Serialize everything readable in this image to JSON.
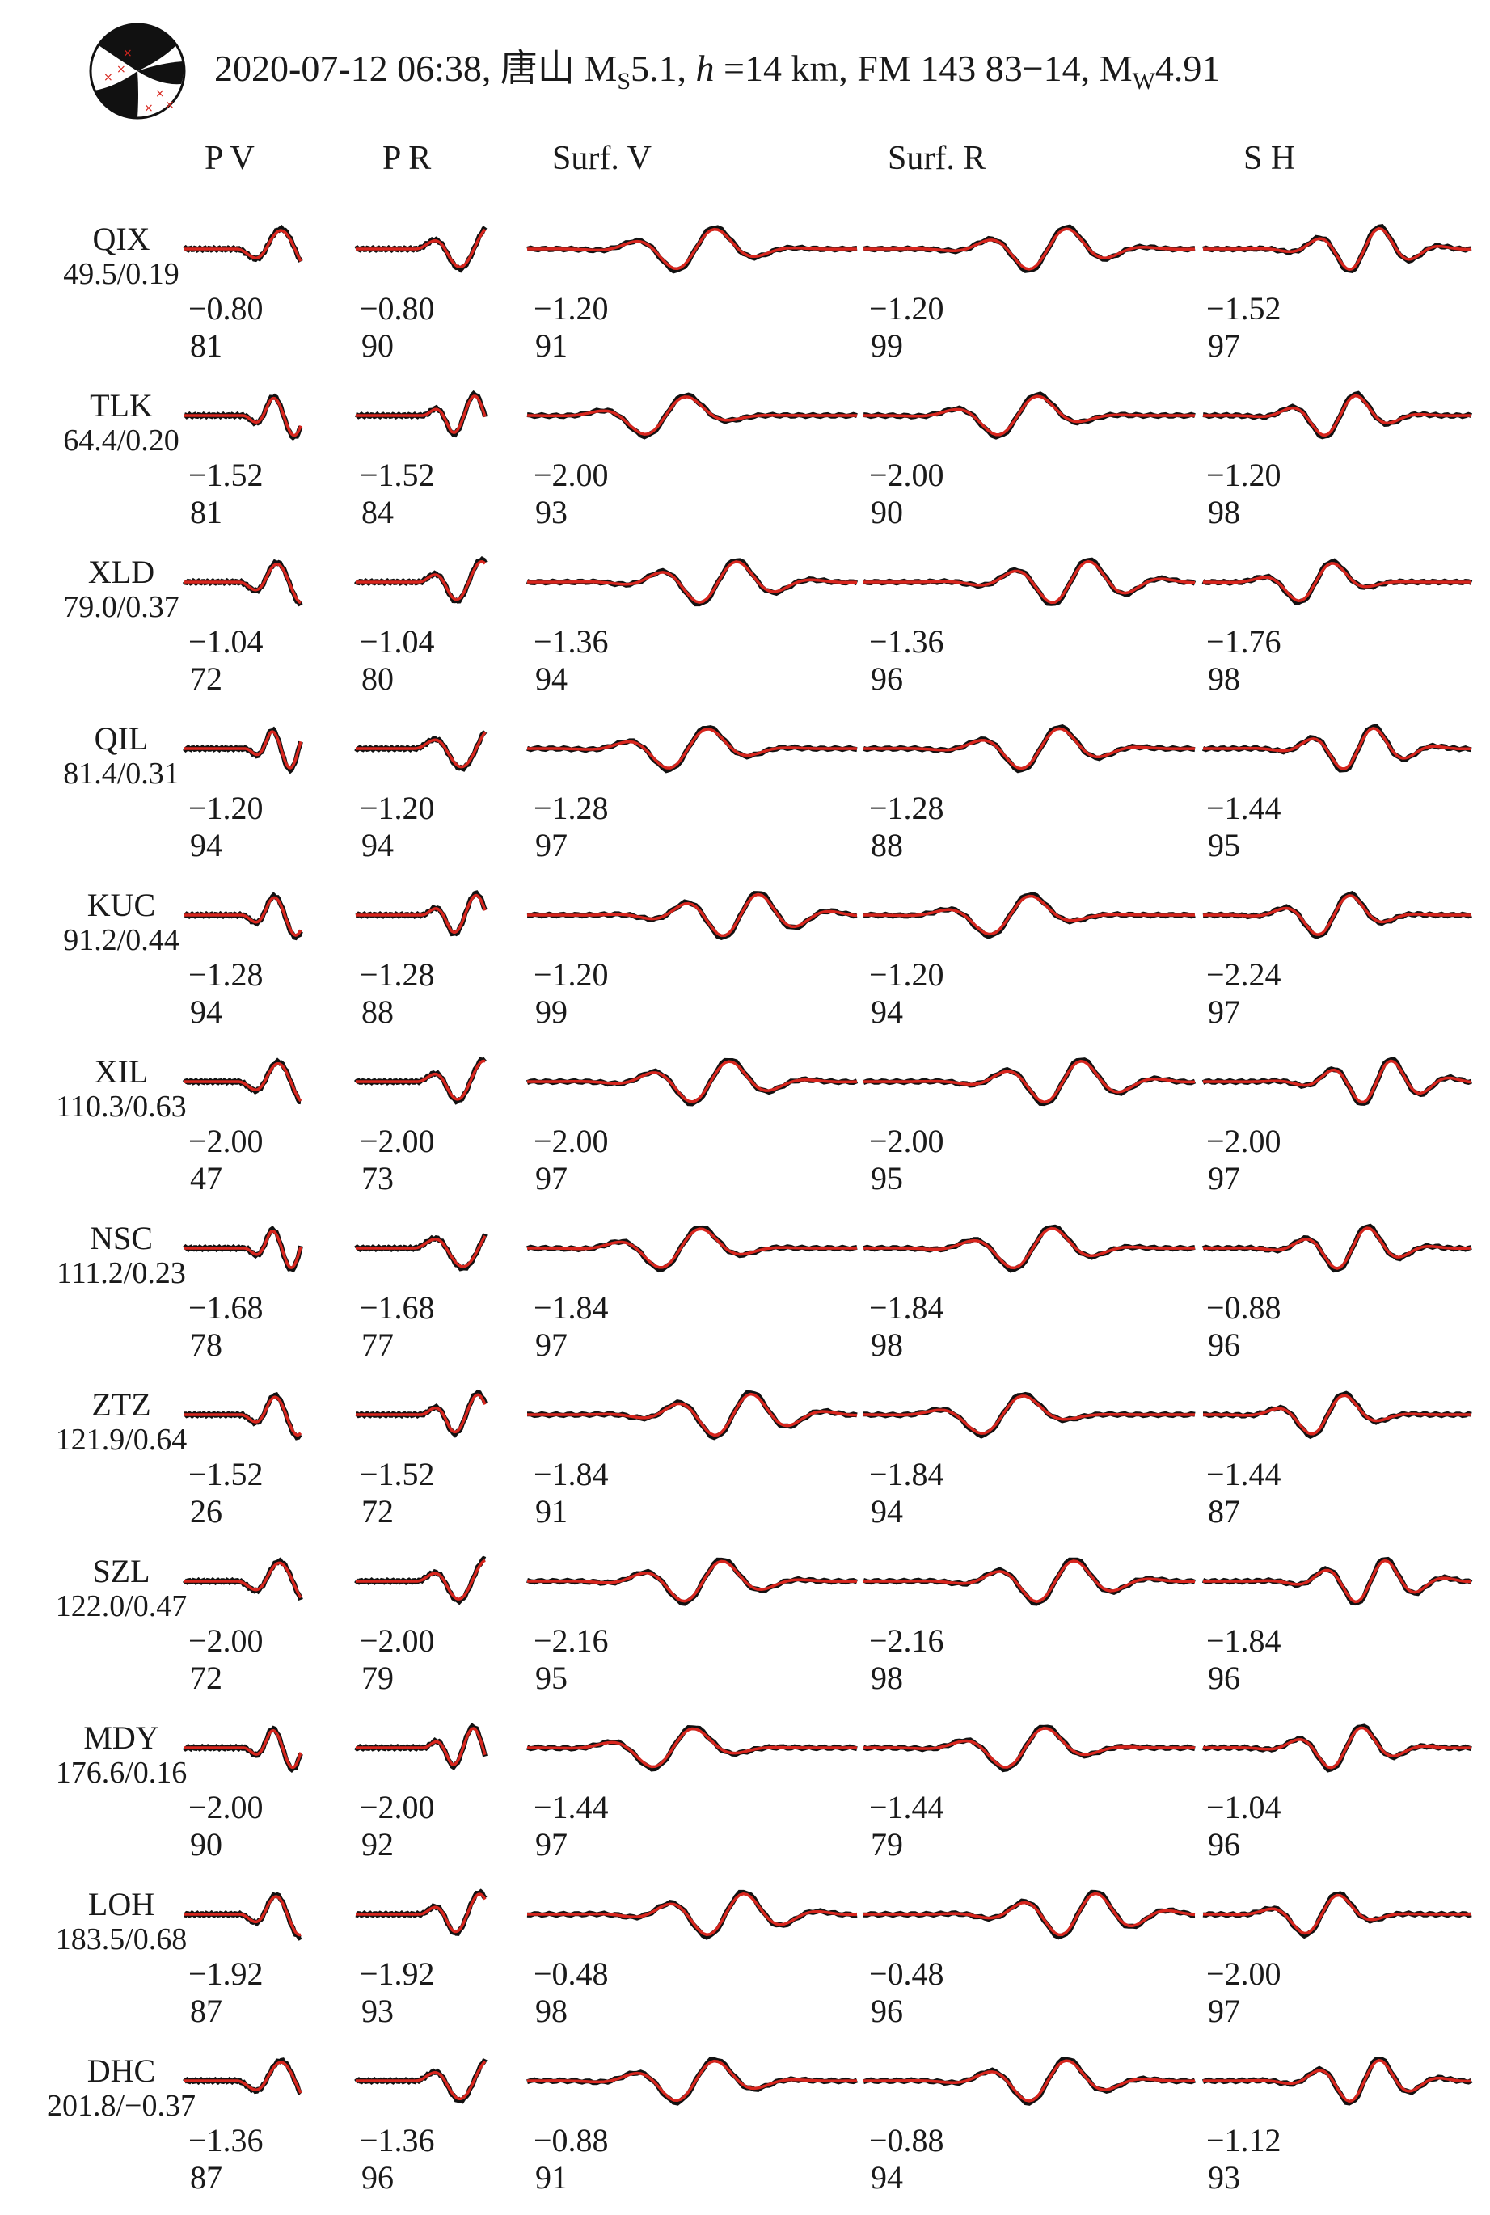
{
  "title": {
    "date": "2020-07-12 06:38,",
    "place": "唐山",
    "mag_prefix": "M",
    "mag_sub": "S",
    "mag_value": "5.1,",
    "depth_var": "h",
    "depth_value": " =14 km,",
    "fm": "FM 143 83−14,",
    "mw_prefix": "M",
    "mw_sub": "W",
    "mw_value": "4.91"
  },
  "columns": [
    "P V",
    "P R",
    "Surf. V",
    "Surf. R",
    "S H"
  ],
  "colors": {
    "observed": "#111111",
    "synthetic": "#d7261e"
  },
  "rows": [
    {
      "station": "QIX",
      "dist": "49.5/0.19",
      "shift": [
        "−0.80",
        "−0.80",
        "−1.20",
        "−1.20",
        "−1.52"
      ],
      "cc": [
        "81",
        "90",
        "91",
        "99",
        "97"
      ]
    },
    {
      "station": "TLK",
      "dist": "64.4/0.20",
      "shift": [
        "−1.52",
        "−1.52",
        "−2.00",
        "−2.00",
        "−1.20"
      ],
      "cc": [
        "81",
        "84",
        "93",
        "90",
        "98"
      ]
    },
    {
      "station": "XLD",
      "dist": "79.0/0.37",
      "shift": [
        "−1.04",
        "−1.04",
        "−1.36",
        "−1.36",
        "−1.76"
      ],
      "cc": [
        "72",
        "80",
        "94",
        "96",
        "98"
      ]
    },
    {
      "station": "QIL",
      "dist": "81.4/0.31",
      "shift": [
        "−1.20",
        "−1.20",
        "−1.28",
        "−1.28",
        "−1.44"
      ],
      "cc": [
        "94",
        "94",
        "97",
        "88",
        "95"
      ]
    },
    {
      "station": "KUC",
      "dist": "91.2/0.44",
      "shift": [
        "−1.28",
        "−1.28",
        "−1.20",
        "−1.20",
        "−2.24"
      ],
      "cc": [
        "94",
        "88",
        "99",
        "94",
        "97"
      ]
    },
    {
      "station": "XIL",
      "dist": "110.3/0.63",
      "shift": [
        "−2.00",
        "−2.00",
        "−2.00",
        "−2.00",
        "−2.00"
      ],
      "cc": [
        "47",
        "73",
        "97",
        "95",
        "97"
      ]
    },
    {
      "station": "NSC",
      "dist": "111.2/0.23",
      "shift": [
        "−1.68",
        "−1.68",
        "−1.84",
        "−1.84",
        "−0.88"
      ],
      "cc": [
        "78",
        "77",
        "97",
        "98",
        "96"
      ]
    },
    {
      "station": "ZTZ",
      "dist": "121.9/0.64",
      "shift": [
        "−1.52",
        "−1.52",
        "−1.84",
        "−1.84",
        "−1.44"
      ],
      "cc": [
        "26",
        "72",
        "91",
        "94",
        "87"
      ]
    },
    {
      "station": "SZL",
      "dist": "122.0/0.47",
      "shift": [
        "−2.00",
        "−2.00",
        "−2.16",
        "−2.16",
        "−1.84"
      ],
      "cc": [
        "72",
        "79",
        "95",
        "98",
        "96"
      ]
    },
    {
      "station": "MDY",
      "dist": "176.6/0.16",
      "shift": [
        "−2.00",
        "−2.00",
        "−1.44",
        "−1.44",
        "−1.04"
      ],
      "cc": [
        "90",
        "92",
        "97",
        "79",
        "96"
      ]
    },
    {
      "station": "LOH",
      "dist": "183.5/0.68",
      "shift": [
        "−1.92",
        "−1.92",
        "−0.48",
        "−0.48",
        "−2.00"
      ],
      "cc": [
        "87",
        "93",
        "98",
        "96",
        "97"
      ]
    },
    {
      "station": "DHC",
      "dist": "201.8/−0.37",
      "shift": [
        "−1.36",
        "−1.36",
        "−0.88",
        "−0.88",
        "−1.12"
      ],
      "cc": [
        "87",
        "96",
        "91",
        "94",
        "93"
      ]
    }
  ]
}
